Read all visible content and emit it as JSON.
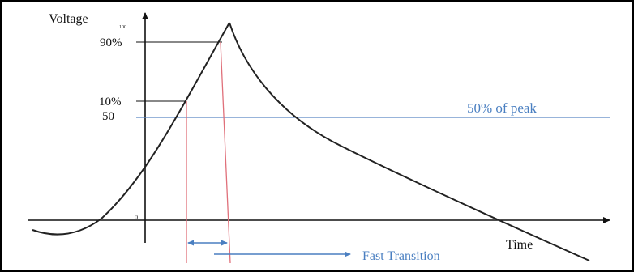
{
  "diagram": {
    "y_axis_label": "Voltage",
    "y_axis_small_label": "100",
    "origin_label": "0",
    "x_axis_label": "Time",
    "level_90": "90%",
    "level_10": "10%",
    "level_50": "50",
    "half_peak_label": "50% of peak",
    "transition_label": "Fast Transition"
  },
  "colors": {
    "curve": "#222222",
    "half_peak_line": "#5b86c4",
    "marker_lines": "#e0707a",
    "transition_arrow": "#4a7fc1",
    "frame": "#000000"
  }
}
